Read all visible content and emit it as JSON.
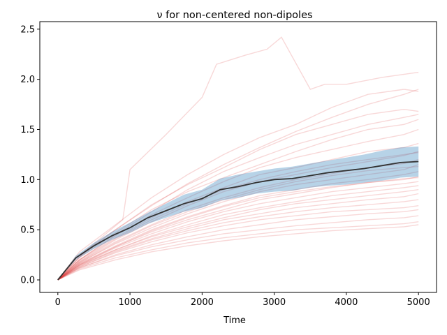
{
  "chart_data": {
    "type": "line",
    "title": "ν for non-centered non-dipoles",
    "xlabel": "Time",
    "ylabel": "",
    "xlim": [
      -250,
      5250
    ],
    "ylim": [
      -0.125,
      2.575
    ],
    "x_ticks": [
      0,
      1000,
      2000,
      3000,
      4000,
      5000
    ],
    "x_tick_labels": [
      "0",
      "1000",
      "2000",
      "3000",
      "4000",
      "5000"
    ],
    "y_ticks": [
      0.0,
      0.5,
      1.0,
      1.5,
      2.0,
      2.5
    ],
    "y_tick_labels": [
      "0.0",
      "0.5",
      "1.0",
      "1.5",
      "2.0",
      "2.5"
    ],
    "grid": false,
    "legend": "none",
    "colors": {
      "runs": "#d62728",
      "band": "#1f77b4",
      "mean": "#333333"
    },
    "mean": {
      "x": [
        0,
        250,
        500,
        750,
        1000,
        1250,
        1500,
        1750,
        2000,
        2250,
        2500,
        2750,
        3000,
        3250,
        3500,
        3750,
        4000,
        4250,
        4500,
        4750,
        5000
      ],
      "y": [
        0.0,
        0.22,
        0.34,
        0.44,
        0.52,
        0.62,
        0.69,
        0.76,
        0.81,
        0.9,
        0.93,
        0.97,
        1.0,
        1.01,
        1.04,
        1.07,
        1.09,
        1.11,
        1.14,
        1.17,
        1.18
      ]
    },
    "band": {
      "x": [
        0,
        250,
        500,
        750,
        1000,
        1250,
        1500,
        1750,
        2000,
        2250,
        2500,
        2750,
        3000,
        3250,
        3500,
        3750,
        4000,
        4250,
        4500,
        4750,
        5000
      ],
      "lower": [
        0.0,
        0.2,
        0.31,
        0.4,
        0.47,
        0.56,
        0.62,
        0.68,
        0.72,
        0.79,
        0.82,
        0.86,
        0.88,
        0.89,
        0.92,
        0.94,
        0.95,
        0.97,
        0.99,
        1.02,
        1.03
      ],
      "upper": [
        0.0,
        0.24,
        0.37,
        0.48,
        0.57,
        0.67,
        0.76,
        0.85,
        0.9,
        1.01,
        1.05,
        1.08,
        1.11,
        1.13,
        1.16,
        1.19,
        1.22,
        1.25,
        1.29,
        1.32,
        1.33
      ]
    },
    "series": [
      {
        "x": [
          0,
          400,
          900,
          1000,
          1500,
          2000,
          2200,
          2600,
          2900,
          3100,
          3500,
          3700,
          4000,
          4500,
          5000
        ],
        "y": [
          0.0,
          0.3,
          0.6,
          1.1,
          1.45,
          1.82,
          2.15,
          2.24,
          2.3,
          2.42,
          1.9,
          1.95,
          1.95,
          2.02,
          2.07
        ]
      },
      {
        "x": [
          0,
          300,
          800,
          1300,
          1800,
          2300,
          2800,
          3300,
          3800,
          4300,
          4800,
          5000
        ],
        "y": [
          0.0,
          0.28,
          0.55,
          0.82,
          1.05,
          1.25,
          1.42,
          1.55,
          1.72,
          1.85,
          1.9,
          1.88
        ]
      },
      {
        "x": [
          0,
          300,
          800,
          1300,
          1800,
          2300,
          2800,
          3300,
          3800,
          4300,
          4800,
          5000
        ],
        "y": [
          0.0,
          0.25,
          0.5,
          0.75,
          0.95,
          1.12,
          1.3,
          1.45,
          1.55,
          1.65,
          1.7,
          1.68
        ]
      },
      {
        "x": [
          0,
          300,
          800,
          1300,
          1800,
          2300,
          2800,
          3300,
          3800,
          4300,
          4800,
          5000
        ],
        "y": [
          0.0,
          0.22,
          0.47,
          0.7,
          0.88,
          1.02,
          1.15,
          1.28,
          1.4,
          1.5,
          1.55,
          1.6
        ]
      },
      {
        "x": [
          0,
          300,
          800,
          1300,
          1800,
          2300,
          2800,
          3300,
          3800,
          4300,
          4800,
          5000
        ],
        "y": [
          0.0,
          0.2,
          0.44,
          0.65,
          0.82,
          0.98,
          1.12,
          1.22,
          1.3,
          1.38,
          1.45,
          1.5
        ]
      },
      {
        "x": [
          0,
          300,
          800,
          1300,
          1800,
          2300,
          2800,
          3300,
          3800,
          4300,
          4800,
          5000
        ],
        "y": [
          0.0,
          0.2,
          0.42,
          0.62,
          0.78,
          0.92,
          1.05,
          1.12,
          1.2,
          1.28,
          1.32,
          1.36
        ]
      },
      {
        "x": [
          0,
          300,
          800,
          1300,
          1800,
          2300,
          2800,
          3300,
          3800,
          4300,
          4800,
          5000
        ],
        "y": [
          0.0,
          0.18,
          0.4,
          0.58,
          0.74,
          0.88,
          0.98,
          1.05,
          1.12,
          1.18,
          1.24,
          1.28
        ]
      },
      {
        "x": [
          0,
          300,
          800,
          1300,
          1800,
          2300,
          2800,
          3300,
          3800,
          4300,
          4800,
          5000
        ],
        "y": [
          0.0,
          0.18,
          0.38,
          0.55,
          0.7,
          0.82,
          0.92,
          1.0,
          1.06,
          1.12,
          1.16,
          1.2
        ]
      },
      {
        "x": [
          0,
          300,
          800,
          1300,
          1800,
          2300,
          2800,
          3300,
          3800,
          4300,
          4800,
          5000
        ],
        "y": [
          0.0,
          0.17,
          0.36,
          0.52,
          0.66,
          0.78,
          0.88,
          0.95,
          1.0,
          1.05,
          1.1,
          1.15
        ]
      },
      {
        "x": [
          0,
          300,
          800,
          1300,
          1800,
          2300,
          2800,
          3300,
          3800,
          4300,
          4800,
          5000
        ],
        "y": [
          0.0,
          0.16,
          0.34,
          0.5,
          0.63,
          0.74,
          0.84,
          0.9,
          0.96,
          1.0,
          1.05,
          1.08
        ]
      },
      {
        "x": [
          0,
          300,
          800,
          1300,
          1800,
          2300,
          2800,
          3300,
          3800,
          4300,
          4800,
          5000
        ],
        "y": [
          0.0,
          0.16,
          0.33,
          0.48,
          0.6,
          0.7,
          0.8,
          0.86,
          0.92,
          0.97,
          1.0,
          1.03
        ]
      },
      {
        "x": [
          0,
          300,
          800,
          1300,
          1800,
          2300,
          2800,
          3300,
          3800,
          4300,
          4800,
          5000
        ],
        "y": [
          0.0,
          0.15,
          0.32,
          0.46,
          0.58,
          0.68,
          0.76,
          0.82,
          0.88,
          0.92,
          0.96,
          0.98
        ]
      },
      {
        "x": [
          0,
          300,
          800,
          1300,
          1800,
          2300,
          2800,
          3300,
          3800,
          4300,
          4800,
          5000
        ],
        "y": [
          0.0,
          0.15,
          0.3,
          0.44,
          0.55,
          0.65,
          0.72,
          0.78,
          0.84,
          0.88,
          0.92,
          0.94
        ]
      },
      {
        "x": [
          0,
          300,
          800,
          1300,
          1800,
          2300,
          2800,
          3300,
          3800,
          4300,
          4800,
          5000
        ],
        "y": [
          0.0,
          0.14,
          0.3,
          0.43,
          0.53,
          0.62,
          0.7,
          0.76,
          0.8,
          0.84,
          0.88,
          0.9
        ]
      },
      {
        "x": [
          0,
          300,
          800,
          1300,
          1800,
          2300,
          2800,
          3300,
          3800,
          4300,
          4800,
          5000
        ],
        "y": [
          0.0,
          0.14,
          0.29,
          0.41,
          0.51,
          0.6,
          0.66,
          0.72,
          0.76,
          0.8,
          0.83,
          0.86
        ]
      },
      {
        "x": [
          0,
          300,
          800,
          1300,
          1800,
          2300,
          2800,
          3300,
          3800,
          4300,
          4800,
          5000
        ],
        "y": [
          0.0,
          0.13,
          0.28,
          0.4,
          0.49,
          0.57,
          0.63,
          0.68,
          0.72,
          0.75,
          0.78,
          0.8
        ]
      },
      {
        "x": [
          0,
          300,
          800,
          1300,
          1800,
          2300,
          2800,
          3300,
          3800,
          4300,
          4800,
          5000
        ],
        "y": [
          0.0,
          0.13,
          0.27,
          0.38,
          0.47,
          0.54,
          0.6,
          0.64,
          0.68,
          0.7,
          0.72,
          0.74
        ]
      },
      {
        "x": [
          0,
          300,
          800,
          1300,
          1800,
          2300,
          2800,
          3300,
          3800,
          4300,
          4800,
          5000
        ],
        "y": [
          0.0,
          0.12,
          0.25,
          0.35,
          0.43,
          0.5,
          0.55,
          0.6,
          0.63,
          0.66,
          0.68,
          0.7
        ]
      },
      {
        "x": [
          0,
          300,
          800,
          1300,
          1800,
          2300,
          2800,
          3300,
          3800,
          4300,
          4800,
          5000
        ],
        "y": [
          0.0,
          0.12,
          0.24,
          0.33,
          0.4,
          0.46,
          0.5,
          0.54,
          0.57,
          0.6,
          0.62,
          0.64
        ]
      },
      {
        "x": [
          0,
          300,
          800,
          1300,
          1800,
          2300,
          2800,
          3300,
          3800,
          4300,
          4800,
          5000
        ],
        "y": [
          0.0,
          0.11,
          0.22,
          0.3,
          0.37,
          0.42,
          0.46,
          0.5,
          0.52,
          0.54,
          0.56,
          0.58
        ]
      },
      {
        "x": [
          0,
          300,
          800,
          1300,
          1800,
          2300,
          2800,
          3300,
          3800,
          4300,
          4800,
          5000
        ],
        "y": [
          0.0,
          0.1,
          0.2,
          0.28,
          0.34,
          0.39,
          0.43,
          0.46,
          0.49,
          0.51,
          0.53,
          0.55
        ]
      },
      {
        "x": [
          0,
          300,
          800,
          1300,
          1800,
          2300,
          2800,
          3300,
          3800,
          4300,
          4800,
          5000
        ],
        "y": [
          0.0,
          0.2,
          0.45,
          0.68,
          0.9,
          1.08,
          1.22,
          1.35,
          1.45,
          1.55,
          1.62,
          1.65
        ]
      },
      {
        "x": [
          0,
          300,
          800,
          1300,
          1800,
          2300,
          2800,
          3300,
          3800,
          4300,
          4800,
          5000
        ],
        "y": [
          0.0,
          0.19,
          0.41,
          0.6,
          0.76,
          0.9,
          1.0,
          1.08,
          1.15,
          1.2,
          1.25,
          1.27
        ]
      },
      {
        "x": [
          0,
          300,
          800,
          1300,
          1800,
          2300,
          2800,
          3300,
          3800,
          4300,
          4800,
          5000
        ],
        "y": [
          0.0,
          0.17,
          0.37,
          0.54,
          0.68,
          0.8,
          0.9,
          0.98,
          1.04,
          1.09,
          1.12,
          1.13
        ]
      },
      {
        "x": [
          0,
          300,
          800,
          1300,
          1800,
          2300,
          2800,
          3300,
          3800,
          4300,
          4800,
          5000
        ],
        "y": [
          0.0,
          0.15,
          0.33,
          0.49,
          0.62,
          0.73,
          0.82,
          0.88,
          0.93,
          0.97,
          1.01,
          1.02
        ]
      },
      {
        "x": [
          0,
          300,
          800,
          1300,
          1800,
          2300,
          2800,
          3300,
          3800,
          4300,
          4800,
          5000
        ],
        "y": [
          0.0,
          0.23,
          0.5,
          0.74,
          0.96,
          1.15,
          1.32,
          1.48,
          1.62,
          1.75,
          1.85,
          1.9
        ]
      }
    ]
  }
}
